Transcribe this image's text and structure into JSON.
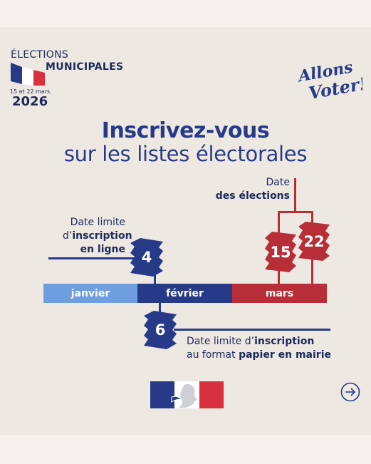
{
  "header": {
    "elections_word": "ÉLECTIONS",
    "municipales_word": "MUNICIPALES",
    "dates_small": "15 et 22 mars",
    "year": "2026",
    "slogan_line1": "Allons",
    "slogan_line2": "Voter!"
  },
  "title": {
    "line1": "Inscrivez-vous",
    "line2": "sur les listes électorales"
  },
  "timeline": {
    "months": [
      "janvier",
      "février",
      "mars"
    ],
    "online_deadline": {
      "day": "4",
      "label_pre": "Date limite",
      "label_mid": "d’",
      "label_bold": "inscription",
      "label_bold2": "en ligne"
    },
    "paper_deadline": {
      "day": "6",
      "label_pre": "Date limite d’",
      "label_bold": "inscription",
      "label_pre2": "au format ",
      "label_bold2": "papier en mairie"
    },
    "election_dates": {
      "round1": "15",
      "round2": "22",
      "label_pre": "Date",
      "label_bold": "des élections"
    }
  },
  "colors": {
    "navy": "#273a88",
    "red": "#b82e38",
    "light_blue": "#6e9ee0",
    "background": "#ede8e2"
  },
  "icons": [
    "france-flag-icon",
    "republique-francaise-logo",
    "arrow-right-circle-icon"
  ]
}
